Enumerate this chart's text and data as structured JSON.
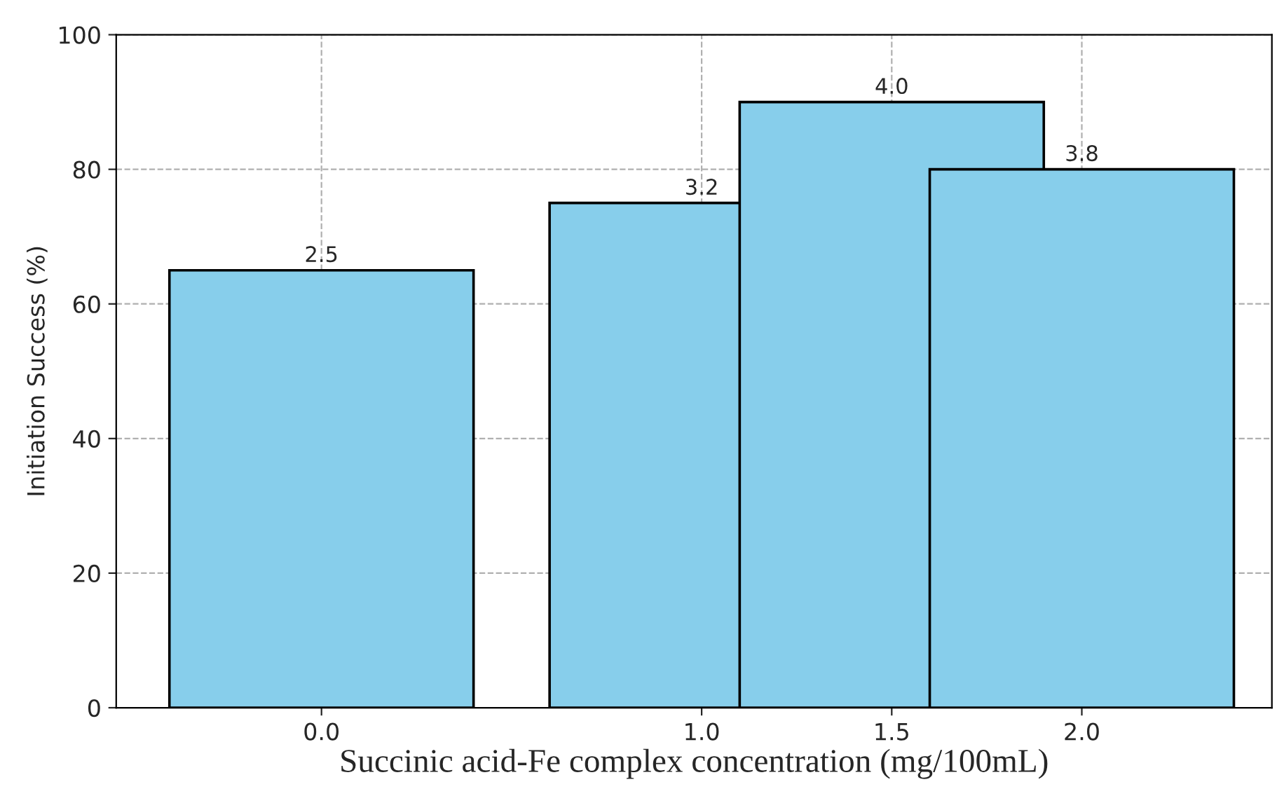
{
  "chart_data": {
    "type": "bar",
    "xlabel": "Succinic acid-Fe complex concentration (mg/100mL)",
    "ylabel": "Initiation Success (%)",
    "x": [
      0.0,
      1.0,
      1.5,
      2.0
    ],
    "values": [
      65,
      75,
      90,
      80
    ],
    "annotations": [
      {
        "text": "2.5",
        "x": 0.0,
        "y": 65
      },
      {
        "text": "3.2",
        "x": 1.0,
        "y": 75
      },
      {
        "text": "4.0",
        "x": 1.5,
        "y": 90
      },
      {
        "text": "3.8",
        "x": 2.0,
        "y": 80
      }
    ],
    "color": "#87ceeb",
    "xlim": [
      -0.54,
      2.5
    ],
    "xticks": [
      {
        "value": 0.0,
        "label": "0.0"
      },
      {
        "value": 1.0,
        "label": "1.0"
      },
      {
        "value": 1.5,
        "label": "1.5"
      },
      {
        "value": 2.0,
        "label": "2.0"
      }
    ],
    "ylim": [
      0,
      100
    ],
    "yticks": [
      0,
      20,
      40,
      60,
      80,
      100
    ],
    "grid": true
  }
}
